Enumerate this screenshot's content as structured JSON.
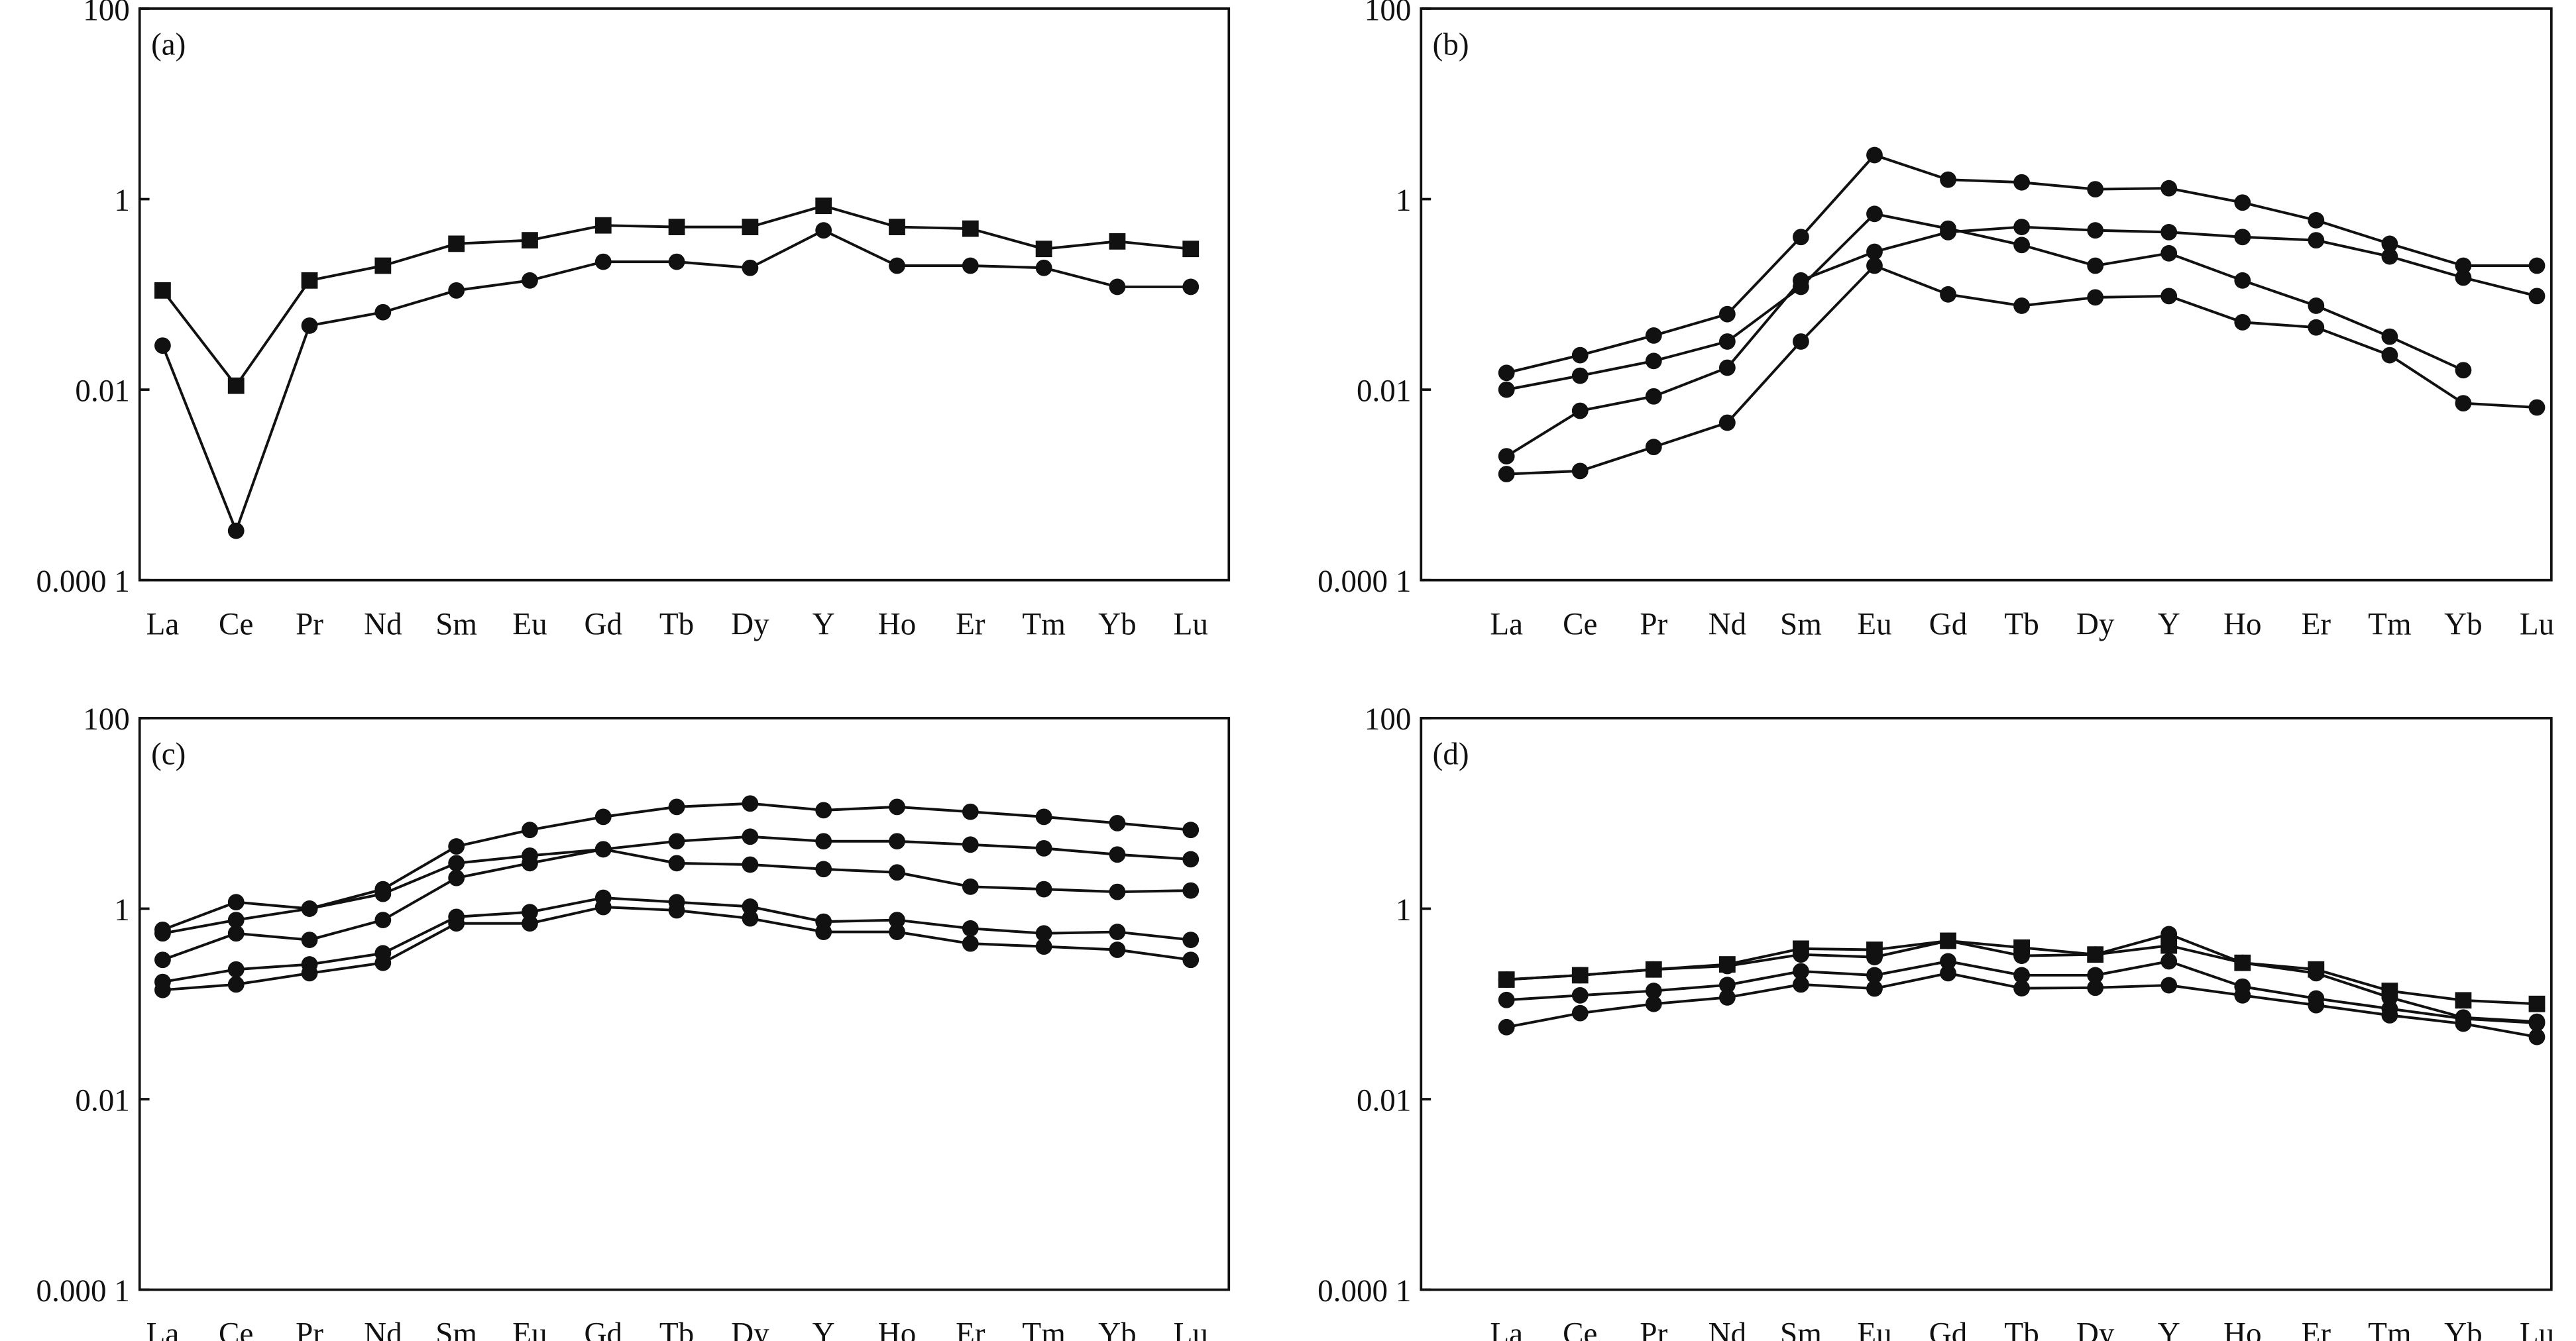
{
  "chart_data": [
    {
      "type": "line",
      "panel_label": "(a)",
      "y_scale": "log",
      "ylim": [
        0.0001,
        100
      ],
      "y_ticks": [
        100,
        1,
        0.01,
        0.0001
      ],
      "y_tick_labels": [
        "100",
        "1",
        "0.01",
        "0.000 1"
      ],
      "categories": [
        "La",
        "Ce",
        "Pr",
        "Nd",
        "Sm",
        "Eu",
        "Gd",
        "Tb",
        "Dy",
        "Y",
        "Ho",
        "Er",
        "Tm",
        "Yb",
        "Lu"
      ],
      "grid": false,
      "series": [
        {
          "marker": "square",
          "values": [
            0.11,
            0.011,
            0.14,
            0.2,
            0.34,
            0.37,
            0.53,
            0.51,
            0.51,
            0.85,
            0.51,
            0.49,
            0.3,
            0.36,
            0.3
          ]
        },
        {
          "marker": "circle",
          "values": [
            0.029,
            0.00033,
            0.047,
            0.065,
            0.11,
            0.14,
            0.22,
            0.22,
            0.19,
            0.47,
            0.2,
            0.2,
            0.19,
            0.12,
            0.12
          ]
        }
      ]
    },
    {
      "type": "line",
      "panel_label": "(b)",
      "y_scale": "log",
      "ylim": [
        0.0001,
        100
      ],
      "y_ticks": [
        100,
        1,
        0.01,
        0.0001
      ],
      "y_tick_labels": [
        "100",
        "1",
        "0.01",
        "0.000 1"
      ],
      "categories": [
        "La",
        "Ce",
        "Pr",
        "Nd",
        "Sm",
        "Eu",
        "Gd",
        "Tb",
        "Dy",
        "Y",
        "Ho",
        "Er",
        "Tm",
        "Yb",
        "Lu"
      ],
      "grid": false,
      "series": [
        {
          "marker": "circle",
          "values": [
            0.015,
            0.023,
            0.037,
            0.062,
            0.4,
            2.9,
            1.6,
            1.5,
            1.27,
            1.3,
            0.92,
            0.6,
            0.34,
            0.2,
            0.2
          ]
        },
        {
          "marker": "circle",
          "values": [
            0.01,
            0.014,
            0.02,
            0.032,
            0.12,
            0.7,
            0.49,
            0.33,
            0.2,
            0.27,
            0.14,
            0.076,
            0.036,
            0.016,
            null
          ]
        },
        {
          "marker": "circle",
          "values": [
            0.002,
            0.006,
            0.0085,
            0.017,
            0.14,
            0.28,
            0.45,
            0.51,
            0.47,
            0.45,
            0.4,
            0.37,
            0.25,
            0.15,
            0.096
          ]
        },
        {
          "marker": "circle",
          "values": [
            0.0013,
            0.0014,
            0.0025,
            0.0045,
            0.032,
            0.2,
            0.1,
            0.076,
            0.093,
            0.096,
            0.051,
            0.045,
            0.023,
            0.0072,
            0.0065
          ]
        }
      ]
    },
    {
      "type": "line",
      "panel_label": "(c)",
      "y_scale": "log",
      "ylim": [
        0.0001,
        100
      ],
      "y_ticks": [
        100,
        1,
        0.01,
        0.0001
      ],
      "y_tick_labels": [
        "100",
        "1",
        "0.01",
        "0.000 1"
      ],
      "categories": [
        "La",
        "Ce",
        "Pr",
        "Nd",
        "Sm",
        "Eu",
        "Gd",
        "Tb",
        "Dy",
        "Y",
        "Ho",
        "Er",
        "Tm",
        "Yb",
        "Lu"
      ],
      "grid": false,
      "series": [
        {
          "marker": "circle",
          "values": [
            0.6,
            1.17,
            1.0,
            1.6,
            4.5,
            6.7,
            9.2,
            11.7,
            12.7,
            10.8,
            11.7,
            10.4,
            9.2,
            7.9,
            6.7
          ]
        },
        {
          "marker": "circle",
          "values": [
            0.55,
            0.76,
            1.0,
            1.43,
            3.0,
            3.6,
            4.2,
            5.1,
            5.7,
            5.1,
            5.1,
            4.7,
            4.3,
            3.7,
            3.3
          ]
        },
        {
          "marker": "circle",
          "values": [
            0.29,
            0.55,
            0.47,
            0.76,
            2.1,
            3.0,
            4.2,
            3.0,
            2.9,
            2.6,
            2.4,
            1.7,
            1.6,
            1.5,
            1.55
          ]
        },
        {
          "marker": "circle",
          "values": [
            0.17,
            0.23,
            0.26,
            0.34,
            0.82,
            0.92,
            1.3,
            1.17,
            1.05,
            0.73,
            0.76,
            0.62,
            0.55,
            0.57,
            0.47
          ]
        },
        {
          "marker": "circle",
          "values": [
            0.14,
            0.16,
            0.21,
            0.27,
            0.7,
            0.7,
            1.04,
            0.96,
            0.79,
            0.57,
            0.57,
            0.43,
            0.4,
            0.37,
            0.29
          ]
        }
      ]
    },
    {
      "type": "line",
      "panel_label": "(d)",
      "y_scale": "log",
      "ylim": [
        0.0001,
        100
      ],
      "y_ticks": [
        100,
        1,
        0.01,
        0.0001
      ],
      "y_tick_labels": [
        "100",
        "1",
        "0.01",
        "0.000 1"
      ],
      "categories": [
        "La",
        "Ce",
        "Pr",
        "Nd",
        "Sm",
        "Eu",
        "Gd",
        "Tb",
        "Dy",
        "Y",
        "Ho",
        "Er",
        "Tm",
        "Yb",
        "Lu"
      ],
      "grid": false,
      "series": [
        {
          "marker": "square",
          "values": [
            0.18,
            0.2,
            0.23,
            0.26,
            0.38,
            0.37,
            0.46,
            0.39,
            0.33,
            0.41,
            0.27,
            0.23,
            0.137,
            0.109,
            0.1
          ]
        },
        {
          "marker": "circle",
          "values": [
            0.18,
            0.2,
            0.23,
            0.25,
            0.33,
            0.31,
            0.46,
            0.32,
            0.33,
            0.54,
            0.27,
            0.21,
            0.117,
            0.072,
            0.065
          ]
        },
        {
          "marker": "circle",
          "values": [
            0.11,
            0.123,
            0.137,
            0.158,
            0.22,
            0.2,
            0.28,
            0.2,
            0.2,
            0.28,
            0.152,
            0.114,
            0.089,
            0.07,
            0.063
          ]
        },
        {
          "marker": "circle",
          "values": [
            0.057,
            0.08,
            0.1,
            0.117,
            0.16,
            0.145,
            0.21,
            0.146,
            0.148,
            0.157,
            0.123,
            0.097,
            0.076,
            0.062,
            0.045
          ]
        }
      ]
    }
  ]
}
